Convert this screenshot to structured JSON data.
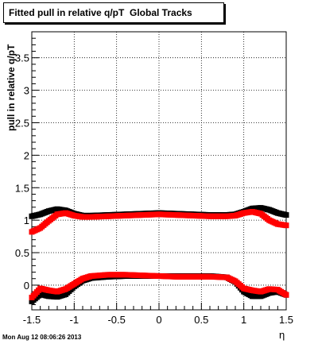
{
  "title": "Fitted pull in relative q/pT  Global Tracks",
  "timestamp": "Mon Aug 12 08:06:26 2013",
  "chart_data": {
    "type": "scatter",
    "title": "Fitted pull in relative q/pT  Global Tracks",
    "xlabel": "η",
    "ylabel": "pull in relative q/pT",
    "xlim": [
      -1.5,
      1.5
    ],
    "ylim": [
      -0.38,
      3.9
    ],
    "grid": true,
    "xticks": [
      "-1.5",
      "-1",
      "-0.5",
      "0",
      "0.5",
      "1",
      "1.5"
    ],
    "yticks": [
      "0",
      "0.5",
      "1",
      "1.5",
      "2",
      "2.5",
      "3",
      "3.5"
    ],
    "x": [
      -1.5,
      -1.4,
      -1.3,
      -1.2,
      -1.1,
      -1.0,
      -0.9,
      -0.8,
      -0.6,
      -0.4,
      -0.2,
      0.0,
      0.2,
      0.4,
      0.6,
      0.8,
      0.9,
      1.0,
      1.1,
      1.2,
      1.3,
      1.4,
      1.5
    ],
    "series": [
      {
        "color": "#000000",
        "marker": "square",
        "values": [
          1.06,
          1.09,
          1.14,
          1.17,
          1.15,
          1.1,
          1.07,
          1.07,
          1.08,
          1.09,
          1.1,
          1.11,
          1.1,
          1.09,
          1.08,
          1.08,
          1.09,
          1.13,
          1.18,
          1.19,
          1.16,
          1.11,
          1.08
        ]
      },
      {
        "color": "#ff0000",
        "marker": "square",
        "values": [
          0.82,
          0.88,
          0.99,
          1.09,
          1.11,
          1.07,
          1.05,
          1.05,
          1.06,
          1.07,
          1.08,
          1.09,
          1.08,
          1.07,
          1.06,
          1.06,
          1.07,
          1.11,
          1.13,
          1.1,
          1.0,
          0.94,
          0.92
        ]
      },
      {
        "color": "#000000",
        "marker": "square",
        "values": [
          -0.25,
          -0.14,
          -0.17,
          -0.18,
          -0.14,
          -0.02,
          0.07,
          0.11,
          0.13,
          0.14,
          0.14,
          0.14,
          0.14,
          0.14,
          0.14,
          0.12,
          0.05,
          -0.1,
          -0.17,
          -0.17,
          -0.12,
          -0.1,
          -0.15
        ]
      },
      {
        "color": "#ff0000",
        "marker": "square",
        "values": [
          -0.19,
          -0.05,
          -0.08,
          -0.1,
          -0.06,
          0.02,
          0.1,
          0.14,
          0.16,
          0.16,
          0.15,
          0.14,
          0.13,
          0.13,
          0.13,
          0.12,
          0.06,
          -0.05,
          -0.08,
          -0.1,
          -0.06,
          -0.07,
          -0.15
        ]
      }
    ]
  }
}
